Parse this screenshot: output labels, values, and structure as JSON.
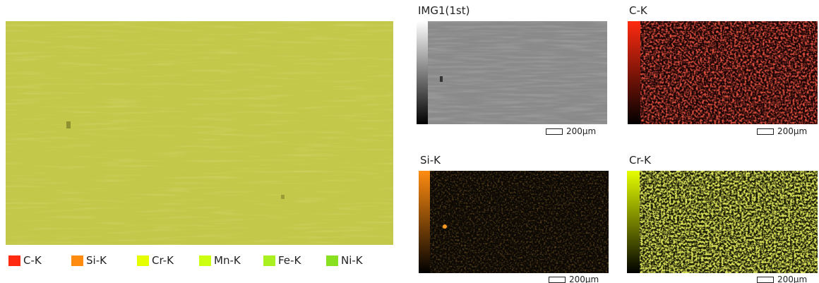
{
  "legend": [
    "C-K",
    "Si-K",
    "Cr-K",
    "Mn-K",
    "Fe-K",
    "Ni-K"
  ],
  "panels": [
    {
      "title": "IMG1(1st)",
      "scale": "200µm"
    },
    {
      "title": "C-K",
      "scale": "200µm"
    },
    {
      "title": "Si-K",
      "scale": "200µm"
    },
    {
      "title": "Cr-K",
      "scale": "200µm"
    }
  ]
}
